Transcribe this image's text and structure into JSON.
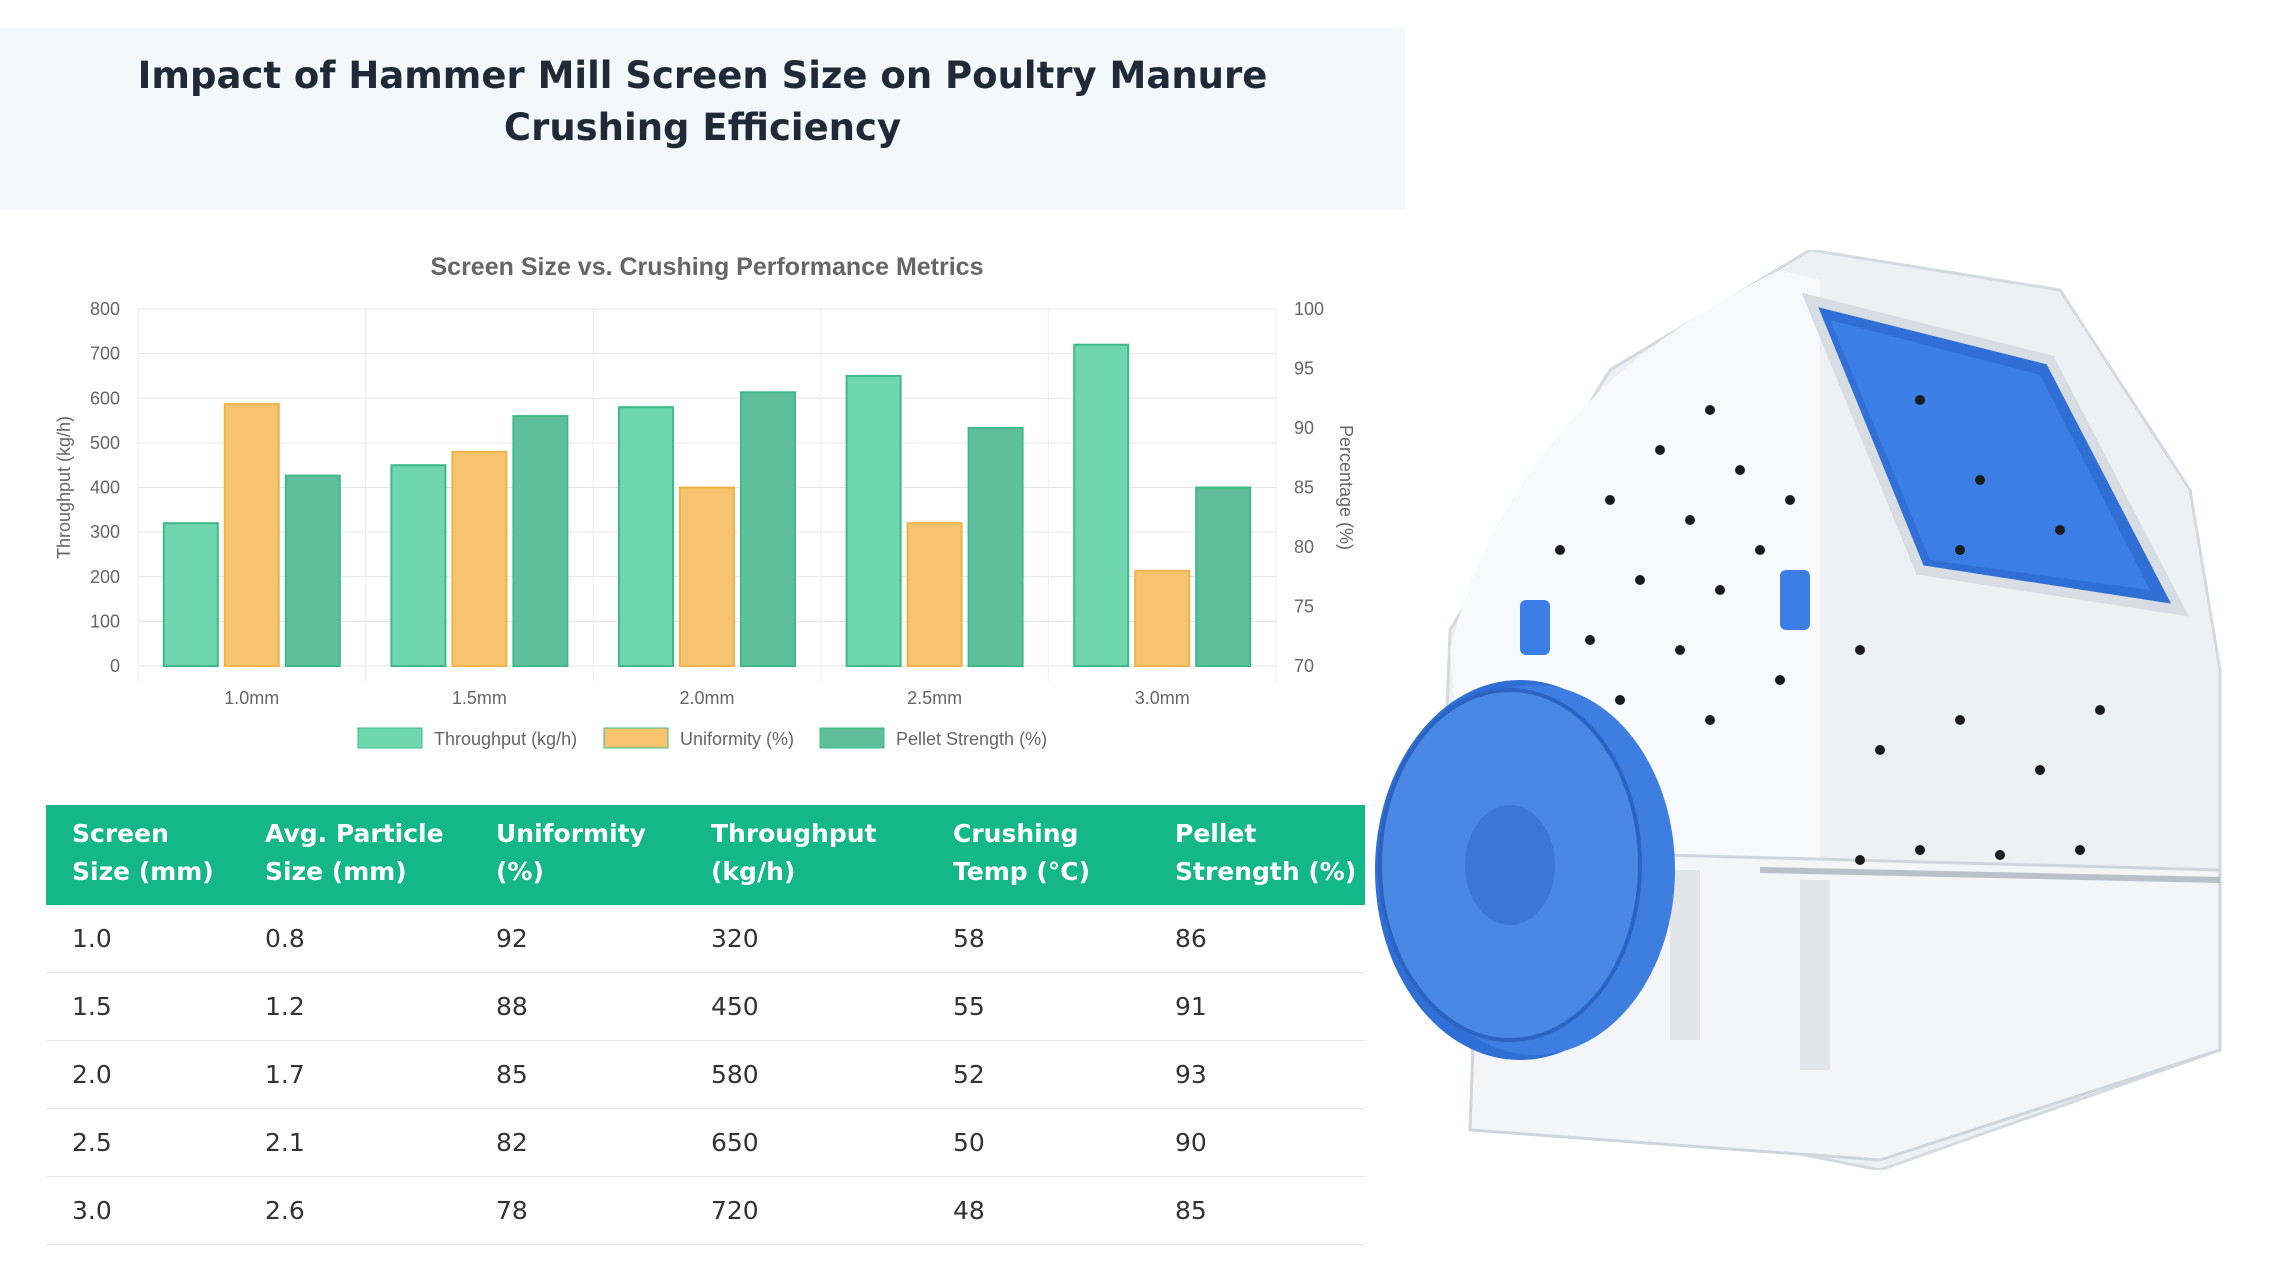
{
  "page_title": "Impact of Hammer Mill Screen Size on Poultry Manure Crushing Efficiency",
  "chart_data": {
    "type": "bar",
    "title": "Screen Size vs. Crushing Performance Metrics",
    "categories": [
      "1.0mm",
      "1.5mm",
      "2.0mm",
      "2.5mm",
      "3.0mm"
    ],
    "series": [
      {
        "name": "Throughput (kg/h)",
        "axis": "left",
        "color": "#6fd6b0",
        "values": [
          320,
          450,
          580,
          650,
          720
        ]
      },
      {
        "name": "Uniformity (%)",
        "axis": "right",
        "color": "#f6c46e",
        "values": [
          92,
          88,
          85,
          82,
          78
        ]
      },
      {
        "name": "Pellet Strength (%)",
        "axis": "right",
        "color": "#5fbe9b",
        "values": [
          86,
          91,
          93,
          90,
          85
        ]
      }
    ],
    "ylabel": "Throughput (kg/h)",
    "y2label": "Percentage (%)",
    "ylim": [
      0,
      800
    ],
    "y2lim": [
      70,
      100
    ],
    "yticks": [
      "0",
      "100",
      "200",
      "300",
      "400",
      "500",
      "600",
      "700",
      "800"
    ],
    "y2ticks": [
      "70",
      "75",
      "80",
      "85",
      "90",
      "95",
      "100"
    ],
    "grid": true,
    "legend": "bottom"
  },
  "table": {
    "headers": [
      [
        "Screen",
        "Size (mm)"
      ],
      [
        "Avg. Particle",
        "Size (mm)"
      ],
      [
        "Uniformity",
        "(%)"
      ],
      [
        "Throughput",
        "(kg/h)"
      ],
      [
        "Crushing",
        "Temp (°C)"
      ],
      [
        "Pellet",
        "Strength (%)"
      ]
    ],
    "rows": [
      [
        "1.0",
        "0.8",
        "92",
        "320",
        "58",
        "86"
      ],
      [
        "1.5",
        "1.2",
        "88",
        "450",
        "55",
        "91"
      ],
      [
        "2.0",
        "1.7",
        "85",
        "580",
        "52",
        "93"
      ],
      [
        "2.5",
        "2.1",
        "82",
        "650",
        "50",
        "90"
      ],
      [
        "3.0",
        "2.6",
        "78",
        "720",
        "48",
        "85"
      ]
    ]
  }
}
